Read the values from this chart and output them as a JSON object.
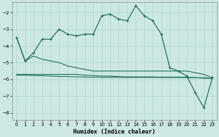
{
  "xlabel": "Humidex (Indice chaleur)",
  "bg_color": "#cde8e4",
  "grid_color": "#b0d8d0",
  "line_color": "#1a6b5a",
  "xlim": [
    -0.5,
    23.5
  ],
  "ylim": [
    -8.4,
    -1.4
  ],
  "yticks": [
    -8,
    -7,
    -6,
    -5,
    -4,
    -3,
    -2
  ],
  "xticks": [
    0,
    1,
    2,
    3,
    4,
    5,
    6,
    7,
    8,
    9,
    10,
    11,
    12,
    13,
    14,
    15,
    16,
    17,
    18,
    19,
    20,
    21,
    22,
    23
  ],
  "line1_y": [
    -3.5,
    -4.9,
    -4.4,
    -3.6,
    -3.6,
    -3.0,
    -3.3,
    -3.4,
    -3.3,
    -3.3,
    -2.2,
    -2.1,
    -2.4,
    -2.5,
    -1.6,
    -2.2,
    -2.5,
    -3.3,
    -5.3,
    -5.5,
    -5.8,
    -6.8,
    -7.7,
    -5.9
  ],
  "line2_y": [
    -3.5,
    -4.9,
    -4.6,
    -4.8,
    -4.9,
    -5.0,
    -5.2,
    -5.3,
    -5.4,
    -5.5,
    -5.5,
    -5.5,
    -5.5,
    -5.5,
    -5.5,
    -5.5,
    -5.5,
    -5.5,
    -5.5,
    -5.5,
    -5.5,
    -5.6,
    -5.7,
    -5.9
  ],
  "line3_y": [
    -5.7,
    -5.7,
    -5.7,
    -5.7,
    -5.7,
    -5.7,
    -5.7,
    -5.7,
    -5.75,
    -5.77,
    -5.8,
    -5.8,
    -5.83,
    -5.85,
    -5.85,
    -5.85,
    -5.85,
    -5.87,
    -5.87,
    -5.87,
    -5.9,
    -5.9,
    -5.92,
    -5.95
  ],
  "line4_y": [
    -5.75,
    -5.75,
    -5.77,
    -5.78,
    -5.8,
    -5.82,
    -5.83,
    -5.85,
    -5.86,
    -5.87,
    -5.88,
    -5.88,
    -5.88,
    -5.88,
    -5.88,
    -5.88,
    -5.88,
    -5.88,
    -5.88,
    -5.88,
    -5.88,
    -5.89,
    -5.9,
    -5.95
  ]
}
